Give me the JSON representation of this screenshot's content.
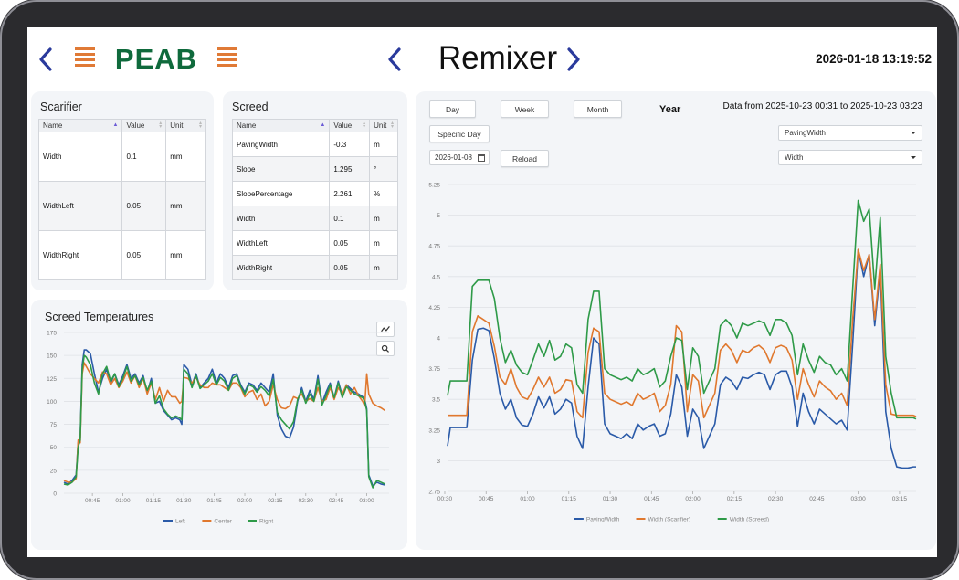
{
  "header": {
    "logo_text": "PEAB",
    "title": "Remixer",
    "datetime": "2026-01-18 13:19:52"
  },
  "colors": {
    "nav_arrow": "#2a3a9c",
    "logo_green": "#0f6a3c",
    "logo_orange": "#e07a36",
    "series_blue": "#2a5aa8",
    "series_orange": "#e0782e",
    "series_green": "#2e9a48"
  },
  "scarifier": {
    "title": "Scarifier",
    "columns": [
      "Name",
      "Value",
      "Unit"
    ],
    "rows": [
      {
        "name": "Width",
        "value": "0.1",
        "unit": "mm"
      },
      {
        "name": "WidthLeft",
        "value": "0.05",
        "unit": "mm"
      },
      {
        "name": "WidthRight",
        "value": "0.05",
        "unit": "mm"
      }
    ]
  },
  "screed": {
    "title": "Screed",
    "columns": [
      "Name",
      "Value",
      "Unit"
    ],
    "rows": [
      {
        "name": "PavingWidth",
        "value": "-0.3",
        "unit": "m"
      },
      {
        "name": "Slope",
        "value": "1.295",
        "unit": "°"
      },
      {
        "name": "SlopePercentage",
        "value": "2.261",
        "unit": "%"
      },
      {
        "name": "Width",
        "value": "0.1",
        "unit": "m"
      },
      {
        "name": "WidthLeft",
        "value": "0.05",
        "unit": "m"
      },
      {
        "name": "WidthRight",
        "value": "0.05",
        "unit": "m"
      }
    ]
  },
  "temps": {
    "title": "Screed Temperatures",
    "tool_icons": [
      "line-chart-icon",
      "zoom-icon"
    ]
  },
  "controls": {
    "day": "Day",
    "week": "Week",
    "month": "Month",
    "year": "Year",
    "specific_day": "Specific Day",
    "date_value": "2026-01-08",
    "reload": "Reload",
    "data_range": "Data from 2025-10-23 00:31 to 2025-10-23 03:23",
    "select_primary": "PavingWidth",
    "select_secondary": "Width"
  },
  "chart_data": [
    {
      "type": "line",
      "id": "temps",
      "title": "Screed Temperatures",
      "y_ticks": [
        "175",
        "150",
        "125",
        "100",
        "75",
        "50",
        "25",
        "0"
      ],
      "ylim": [
        0,
        175
      ],
      "x_ticks": [
        "00:45",
        "01:00",
        "01:15",
        "01:30",
        "01:45",
        "02:00",
        "02:15",
        "02:30",
        "02:45",
        "03:00"
      ],
      "x_tick_minutes": [
        45,
        60,
        75,
        90,
        105,
        120,
        135,
        150,
        165,
        180
      ],
      "xlim_minutes": [
        31,
        191
      ],
      "grid": true,
      "legend_position": "bottom",
      "x": [
        31,
        33,
        35,
        37,
        38,
        39,
        40,
        41,
        42,
        44,
        46,
        48,
        50,
        52,
        54,
        56,
        58,
        60,
        62,
        64,
        66,
        68,
        70,
        72,
        74,
        76,
        78,
        80,
        82,
        84,
        86,
        88,
        89,
        90,
        92,
        94,
        96,
        98,
        100,
        102,
        104,
        106,
        108,
        110,
        112,
        114,
        116,
        118,
        120,
        122,
        124,
        126,
        128,
        130,
        132,
        134,
        136,
        138,
        140,
        142,
        144,
        146,
        148,
        150,
        152,
        154,
        156,
        158,
        160,
        162,
        164,
        166,
        168,
        170,
        172,
        174,
        176,
        178,
        179,
        180,
        181,
        183,
        185,
        187,
        189
      ],
      "series": [
        {
          "name": "Left",
          "values": [
            12,
            10,
            14,
            20,
            55,
            60,
            140,
            156,
            156,
            152,
            130,
            110,
            125,
            135,
            120,
            130,
            118,
            128,
            140,
            125,
            130,
            120,
            128,
            110,
            125,
            98,
            100,
            90,
            85,
            80,
            82,
            80,
            75,
            140,
            135,
            118,
            130,
            115,
            120,
            125,
            135,
            120,
            130,
            125,
            115,
            128,
            130,
            118,
            110,
            120,
            118,
            112,
            120,
            115,
            110,
            130,
            85,
            70,
            62,
            60,
            72,
            100,
            115,
            100,
            112,
            102,
            128,
            98,
            110,
            120,
            104,
            122,
            106,
            118,
            114,
            110,
            108,
            105,
            102,
            92,
            20,
            8,
            12,
            10,
            9
          ]
        },
        {
          "name": "Center",
          "values": [
            14,
            12,
            12,
            16,
            58,
            55,
            130,
            142,
            138,
            130,
            125,
            120,
            132,
            130,
            118,
            125,
            115,
            122,
            132,
            120,
            128,
            115,
            125,
            108,
            120,
            102,
            115,
            100,
            112,
            105,
            105,
            98,
            100,
            126,
            125,
            120,
            126,
            118,
            115,
            115,
            120,
            118,
            118,
            115,
            112,
            120,
            120,
            115,
            105,
            110,
            112,
            102,
            108,
            95,
            100,
            118,
            102,
            93,
            92,
            95,
            105,
            103,
            108,
            100,
            103,
            100,
            115,
            100,
            102,
            115,
            102,
            115,
            108,
            118,
            108,
            115,
            106,
            100,
            95,
            130,
            108,
            98,
            95,
            93,
            90
          ]
        },
        {
          "name": "Right",
          "values": [
            10,
            9,
            12,
            18,
            50,
            58,
            135,
            150,
            148,
            140,
            120,
            108,
            130,
            138,
            122,
            130,
            116,
            125,
            138,
            122,
            128,
            118,
            126,
            112,
            122,
            98,
            106,
            92,
            86,
            82,
            84,
            82,
            80,
            135,
            130,
            115,
            128,
            114,
            118,
            122,
            130,
            118,
            126,
            122,
            112,
            125,
            128,
            116,
            108,
            118,
            116,
            110,
            116,
            112,
            106,
            124,
            88,
            80,
            75,
            70,
            78,
            102,
            112,
            98,
            108,
            100,
            124,
            96,
            106,
            118,
            104,
            120,
            104,
            116,
            112,
            108,
            106,
            104,
            100,
            90,
            18,
            6,
            14,
            12,
            10
          ]
        }
      ]
    },
    {
      "type": "line",
      "id": "main",
      "y_ticks": [
        "5.25",
        "5",
        "4.75",
        "4.5",
        "4.25",
        "4",
        "3.75",
        "3.5",
        "3.25",
        "3",
        "2.75"
      ],
      "ylim": [
        2.75,
        5.25
      ],
      "x_ticks": [
        "00:30",
        "00:45",
        "01:00",
        "01:15",
        "01:30",
        "01:45",
        "02:00",
        "02:15",
        "02:30",
        "02:45",
        "03:00",
        "03:15"
      ],
      "x_tick_minutes": [
        30,
        45,
        60,
        75,
        90,
        105,
        120,
        135,
        150,
        165,
        180,
        195
      ],
      "xlim_minutes": [
        31,
        201
      ],
      "grid": true,
      "legend_position": "bottom",
      "x": [
        31,
        32,
        34,
        36,
        38,
        40,
        42,
        44,
        46,
        48,
        50,
        52,
        54,
        56,
        58,
        60,
        62,
        64,
        66,
        68,
        70,
        72,
        74,
        76,
        78,
        80,
        82,
        84,
        86,
        88,
        90,
        92,
        94,
        96,
        98,
        100,
        102,
        104,
        106,
        108,
        110,
        112,
        114,
        116,
        118,
        120,
        122,
        124,
        126,
        128,
        130,
        132,
        134,
        136,
        138,
        140,
        142,
        144,
        146,
        148,
        150,
        152,
        154,
        156,
        158,
        160,
        162,
        164,
        166,
        168,
        170,
        172,
        174,
        176,
        178,
        180,
        182,
        184,
        186,
        188,
        190,
        192,
        194,
        196,
        198,
        200,
        201
      ],
      "series": [
        {
          "name": "PavingWidth",
          "values": [
            3.12,
            3.27,
            3.27,
            3.27,
            3.27,
            3.82,
            4.07,
            4.08,
            4.06,
            3.83,
            3.55,
            3.42,
            3.5,
            3.35,
            3.29,
            3.28,
            3.38,
            3.52,
            3.43,
            3.52,
            3.38,
            3.42,
            3.5,
            3.47,
            3.2,
            3.1,
            3.6,
            4.0,
            3.95,
            3.3,
            3.22,
            3.2,
            3.18,
            3.22,
            3.18,
            3.3,
            3.25,
            3.28,
            3.3,
            3.2,
            3.22,
            3.38,
            3.7,
            3.6,
            3.2,
            3.42,
            3.35,
            3.1,
            3.2,
            3.3,
            3.62,
            3.68,
            3.65,
            3.58,
            3.68,
            3.67,
            3.7,
            3.72,
            3.7,
            3.58,
            3.7,
            3.73,
            3.73,
            3.6,
            3.28,
            3.55,
            3.4,
            3.3,
            3.42,
            3.38,
            3.34,
            3.3,
            3.33,
            3.25,
            3.95,
            4.72,
            4.5,
            4.68,
            4.1,
            4.55,
            3.4,
            3.1,
            2.95,
            2.94,
            2.94,
            2.95,
            2.95
          ]
        },
        {
          "name": "Width (Scarifier)",
          "values": [
            3.37,
            3.37,
            3.37,
            3.37,
            3.37,
            4.05,
            4.18,
            4.15,
            4.12,
            3.93,
            3.68,
            3.62,
            3.75,
            3.6,
            3.52,
            3.5,
            3.58,
            3.68,
            3.6,
            3.68,
            3.55,
            3.58,
            3.66,
            3.65,
            3.4,
            3.35,
            3.88,
            4.08,
            4.05,
            3.55,
            3.5,
            3.48,
            3.46,
            3.48,
            3.45,
            3.55,
            3.5,
            3.52,
            3.55,
            3.4,
            3.45,
            3.62,
            4.1,
            4.05,
            3.4,
            3.7,
            3.65,
            3.35,
            3.45,
            3.55,
            3.9,
            3.95,
            3.9,
            3.8,
            3.9,
            3.88,
            3.92,
            3.94,
            3.9,
            3.8,
            3.92,
            3.94,
            3.92,
            3.82,
            3.5,
            3.75,
            3.62,
            3.52,
            3.65,
            3.6,
            3.57,
            3.5,
            3.55,
            3.45,
            4.15,
            4.72,
            4.55,
            4.68,
            4.15,
            4.6,
            3.62,
            3.38,
            3.37,
            3.37,
            3.37,
            3.37,
            3.36
          ]
        },
        {
          "name": "Width (Screed)",
          "values": [
            3.53,
            3.65,
            3.65,
            3.65,
            3.65,
            4.42,
            4.47,
            4.47,
            4.47,
            4.32,
            4.0,
            3.8,
            3.9,
            3.78,
            3.72,
            3.7,
            3.82,
            3.95,
            3.85,
            3.98,
            3.82,
            3.85,
            3.95,
            3.92,
            3.62,
            3.55,
            4.15,
            4.38,
            4.38,
            3.75,
            3.7,
            3.68,
            3.66,
            3.68,
            3.65,
            3.75,
            3.7,
            3.72,
            3.75,
            3.6,
            3.65,
            3.85,
            4.0,
            3.98,
            3.58,
            3.92,
            3.85,
            3.55,
            3.65,
            3.75,
            4.1,
            4.15,
            4.1,
            4.0,
            4.12,
            4.1,
            4.12,
            4.14,
            4.12,
            4.02,
            4.15,
            4.15,
            4.12,
            4.02,
            3.7,
            3.95,
            3.82,
            3.72,
            3.85,
            3.8,
            3.78,
            3.7,
            3.75,
            3.65,
            4.4,
            5.12,
            4.95,
            5.05,
            4.4,
            4.98,
            3.85,
            3.55,
            3.35,
            3.35,
            3.35,
            3.35,
            3.34
          ]
        }
      ]
    }
  ]
}
